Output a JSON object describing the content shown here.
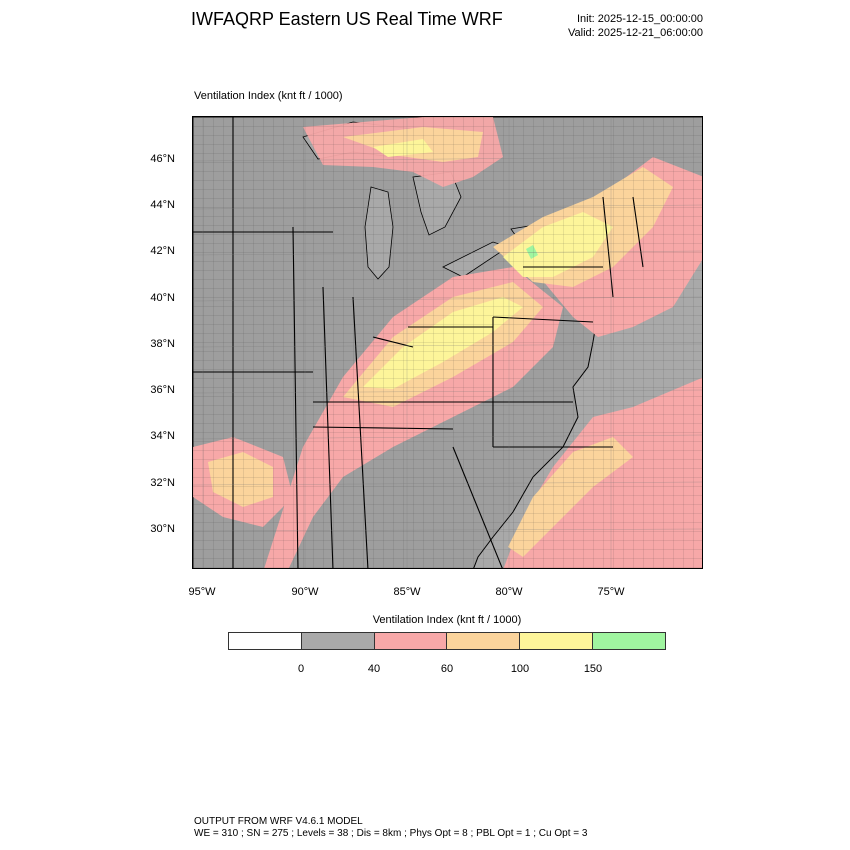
{
  "header": {
    "title": "IWFAQRP Eastern US Real Time WRF",
    "init": "Init: 2025-12-15_00:00:00",
    "valid": "Valid: 2025-12-21_06:00:00"
  },
  "map": {
    "subtitle": "Ventilation Index   (knt ft / 1000)",
    "lat_labels": [
      "46°N",
      "44°N",
      "42°N",
      "40°N",
      "38°N",
      "36°N",
      "34°N",
      "32°N",
      "30°N"
    ],
    "lon_labels": [
      "95°W",
      "90°W",
      "85°W",
      "80°W",
      "75°W"
    ],
    "colors": {
      "ocean_water": "#a9a9a9",
      "land_lowest": "#9e9e9e",
      "band_40_60": "#f7a8a8",
      "band_60_100": "#fbd49c",
      "band_100_150": "#fdf59a",
      "band_150_plus": "#a0f5a0"
    }
  },
  "colorbar": {
    "title": "Ventilation Index  (knt ft / 1000)",
    "colors": [
      "#ffffff",
      "#a9a9a9",
      "#f7a8a8",
      "#fbd49c",
      "#fdf59a",
      "#a0f5a0"
    ],
    "labels": [
      "0",
      "40",
      "60",
      "100",
      "150"
    ]
  },
  "footer": {
    "line1": "OUTPUT FROM WRF V4.6.1 MODEL",
    "line2": "WE = 310 ; SN = 275 ; Levels = 38 ; Dis = 8km ; Phys Opt = 8 ; PBL Opt = 1 ; Cu Opt = 3"
  }
}
